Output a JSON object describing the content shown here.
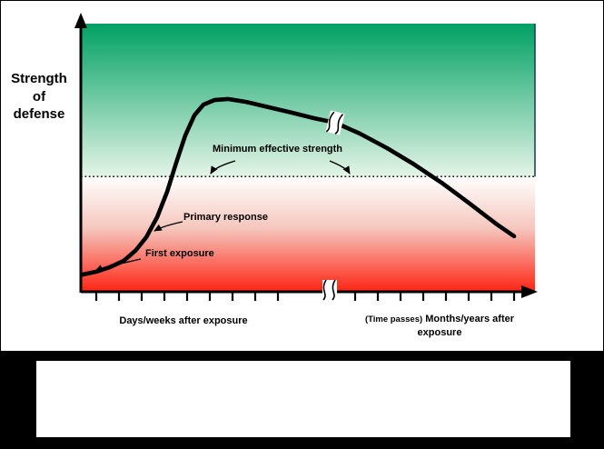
{
  "page": {
    "background": "#ffffff",
    "frame_color": "#000000"
  },
  "chart": {
    "y_axis_label": "Strength\nof\ndefense",
    "annotations": {
      "min_effective": "Minimum effective strength",
      "primary_response": "Primary response",
      "first_exposure": "First exposure"
    },
    "x_label_left": "Days/weeks after exposure",
    "x_label_right_prefix": "(Time passes)",
    "x_label_right": "Months/years after exposure"
  },
  "colors": {
    "green_top": "#00A063",
    "green_bottom": "#E4F4E7",
    "red_top": "#FFFFFF",
    "red_mid": "#F5C6BD",
    "red_bottom": "#FF2413",
    "plot_border": "#17365D",
    "curve": "#000000"
  },
  "chart_data": {
    "type": "line",
    "title": "",
    "ylabel": "Strength of defense",
    "xlabel_left": "Days/weeks after exposure",
    "xlabel_right": "(Time passes) Months/years after exposure",
    "x_range": [
      0,
      100
    ],
    "y_range": [
      0,
      100
    ],
    "grid": false,
    "legend": "none",
    "reference_line": {
      "label": "Minimum effective strength",
      "y": 43
    },
    "zones": [
      {
        "name": "above-minimum-effective-strength",
        "from_y": 43,
        "to_y": 100,
        "fill": "green gradient (dark green top to pale green)"
      },
      {
        "name": "below-minimum-effective-strength",
        "from_y": 0,
        "to_y": 43,
        "fill": "red gradient (white top to red bottom)"
      }
    ],
    "annotations": [
      {
        "label": "First exposure",
        "points_to_x": 3
      },
      {
        "label": "Primary response",
        "points_to_x": 16
      },
      {
        "label": "Minimum effective strength",
        "points_to_y": 43
      }
    ],
    "axis_break_x": 54.8,
    "curve_break_x": 56,
    "ticks_group1": [
      3.4,
      8.4,
      13.4,
      18.4,
      23.4,
      28.4,
      33.4,
      38.4,
      43.4
    ],
    "ticks_group2": [
      60.4,
      65.4,
      70.4,
      75.4,
      80.4,
      85.4,
      90.4,
      95.4
    ],
    "curve": [
      [
        0.4,
        6.4
      ],
      [
        3.4,
        7.5
      ],
      [
        6.4,
        9.2
      ],
      [
        9.4,
        11.5
      ],
      [
        12,
        15.3
      ],
      [
        14.4,
        20.3
      ],
      [
        16.8,
        27.8
      ],
      [
        19,
        37.3
      ],
      [
        21,
        48.1
      ],
      [
        23,
        58.3
      ],
      [
        25,
        65.8
      ],
      [
        27,
        69.8
      ],
      [
        29.4,
        71.5
      ],
      [
        32.4,
        71.9
      ],
      [
        36.4,
        70.8
      ],
      [
        41.4,
        68.8
      ],
      [
        46.4,
        66.8
      ],
      [
        51.4,
        64.7
      ],
      [
        56,
        63.1
      ],
      [
        61.4,
        59
      ],
      [
        67.4,
        53.6
      ],
      [
        73.4,
        47.5
      ],
      [
        79.4,
        40.7
      ],
      [
        85.4,
        33.2
      ],
      [
        91.4,
        25.4
      ],
      [
        95.4,
        20.7
      ]
    ]
  }
}
